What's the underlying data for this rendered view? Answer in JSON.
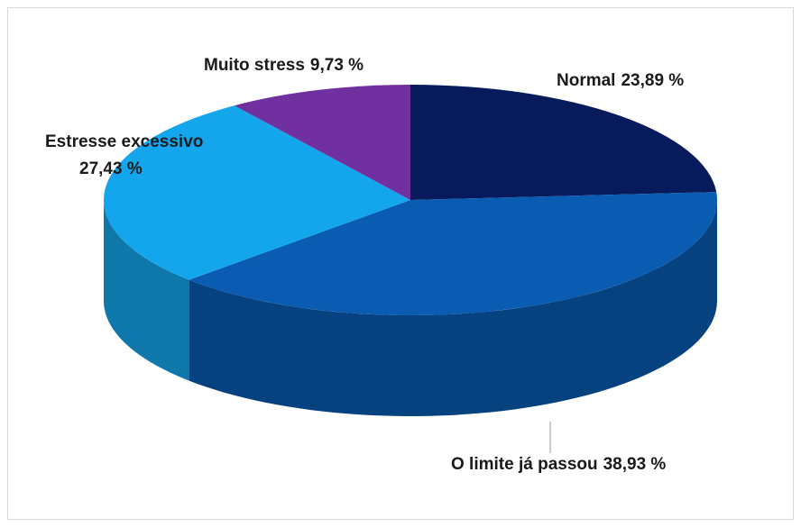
{
  "chart_data": {
    "type": "pie",
    "categories": [
      "Normal",
      "O limite já passou",
      "Estresse excessivo",
      "Muito stress"
    ],
    "values": [
      23.89,
      38.93,
      27.43,
      9.73
    ],
    "value_labels": [
      "23,89 %",
      "38,93 %",
      "27,43 %",
      "9,73 %"
    ],
    "colors": [
      "#071b5c",
      "#0a5cb2",
      "#14a6ec",
      "#7030a0"
    ]
  }
}
